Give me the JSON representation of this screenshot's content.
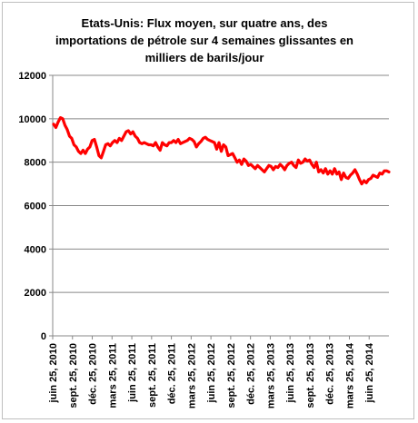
{
  "chart_data": {
    "type": "line",
    "title": {
      "line1": "Etats-Unis: Flux moyen,  sur quatre ans, des",
      "line2": "importations de pétrole sur 4 semaines glissantes en",
      "line3": "milliers de barils/jour"
    },
    "xlabel": "",
    "ylabel": "",
    "ylim": [
      0,
      12000
    ],
    "yticks": [
      "0",
      "2000",
      "4000",
      "6000",
      "8000",
      "10000",
      "12000"
    ],
    "xticks": [
      "juin 25, 2010",
      "sept. 25, 2010",
      "déc. 25, 2010",
      "mars 25, 2011",
      "juin 25, 2011",
      "sept. 25, 2011",
      "déc. 25, 2011",
      "mars 25, 2012",
      "juin 25, 2012",
      "sept. 25, 2012",
      "déc. 25, 2012",
      "mars 25, 2013",
      "juin 25, 2013",
      "sept. 25, 2013",
      "déc. 25, 2013",
      "mars 25, 2014",
      "juin 25, 2014"
    ],
    "grid": "horizontal",
    "legend": "none",
    "line_color": "#ff0000",
    "series": [
      {
        "values": [
          9750,
          9600,
          9850,
          10050,
          10000,
          9700,
          9500,
          9200,
          9100,
          8800,
          8700,
          8500,
          8400,
          8550,
          8400,
          8600,
          8700,
          9000,
          9050,
          8700,
          8300,
          8200,
          8500,
          8800,
          8850,
          8750,
          8900,
          9000,
          8900,
          9100,
          9000,
          9200,
          9400,
          9450,
          9300,
          9400,
          9200,
          9100,
          8900,
          8850,
          8900,
          8850,
          8800,
          8800,
          8750,
          8900,
          8700,
          8550,
          8900,
          8800,
          8750,
          8900,
          8900,
          9000,
          8900,
          9050,
          8850,
          8900,
          8950,
          9000,
          9100,
          9050,
          8950,
          8700,
          8850,
          8950,
          9100,
          9150,
          9050,
          9000,
          8950,
          8900,
          8600,
          8900,
          8500,
          8800,
          8700,
          8300,
          8350,
          8400,
          8200,
          8000,
          8100,
          7900,
          8150,
          8050,
          7850,
          7900,
          7800,
          7700,
          7850,
          7750,
          7650,
          7550,
          7700,
          7850,
          7800,
          7650,
          7800,
          7750,
          7900,
          7800,
          7650,
          7850,
          7950,
          8000,
          7850,
          7750,
          8100,
          7950,
          8000,
          8150,
          8050,
          8100,
          7900,
          7750,
          8000,
          7550,
          7650,
          7500,
          7700,
          7450,
          7600,
          7450,
          7700,
          7450,
          7550,
          7200,
          7500,
          7300,
          7250,
          7400,
          7500,
          7650,
          7450,
          7200,
          7000,
          7150,
          7050,
          7200,
          7250,
          7400,
          7350,
          7300,
          7500,
          7450,
          7600,
          7600,
          7550
        ]
      }
    ]
  }
}
